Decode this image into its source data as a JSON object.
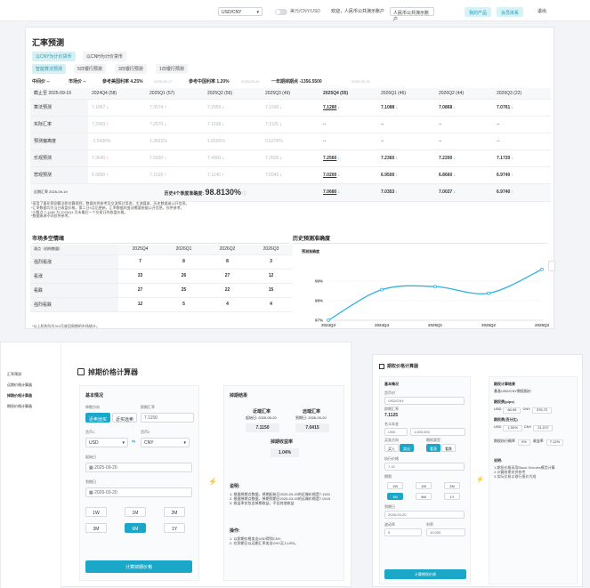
{
  "header": {
    "currency": "USD/CNY",
    "toggle": "美元/CNY/USD",
    "welcome": "欢迎，人民币公共演示账户",
    "account": "人民币公共演示账户",
    "my_products": "我的产品",
    "membership": "会员体系",
    "logout": "退出"
  },
  "forecast": {
    "title": "汇率预测",
    "tabs": [
      "以CNY为计价货币",
      "以CNH为计价货币"
    ],
    "subtabs": [
      "智能算法预测",
      "5日银行预测",
      "3日银行预测",
      "1日银行预测"
    ],
    "info": {
      "mid": "中间价 --",
      "market": "市场价 --",
      "us_rate": "参考美国利率 4.25%",
      "us_rate_date": "2025-09-17",
      "cn_rate": "参考中国利率 1.20%",
      "cn_rate_date": "2025-09-20",
      "swap": "一年期掉期点 -1356.5500",
      "swap_date": "2025-09-19"
    },
    "columns": [
      "截止至 2025-09-19",
      "2024Q4 (58)",
      "2025Q1 (57)",
      "2025Q2 (56)",
      "2025Q3 (49)",
      "2025Q4 (55)",
      "2026Q1 (46)",
      "2026Q2 (44)",
      "2026Q3 (22)"
    ],
    "rows": [
      {
        "label": "算法预测",
        "cells": [
          [
            "7.1867",
            "dn"
          ],
          [
            "7.3574",
            "up"
          ],
          [
            "7.2959",
            "dn"
          ],
          [
            "7.1500",
            "dn"
          ],
          [
            "7.1280",
            "dn"
          ],
          [
            "7.1088",
            "dn"
          ],
          [
            "7.0868",
            "dn"
          ],
          [
            "7.0761",
            "dn"
          ]
        ]
      },
      {
        "label": "实际汇率",
        "cells": [
          [
            "7.2993",
            "up"
          ],
          [
            "7.2570",
            "dn"
          ],
          [
            "7.1638",
            "dn"
          ],
          [
            "7.1125",
            "dn"
          ],
          [
            "--",
            ""
          ],
          [
            "--",
            ""
          ],
          [
            "--",
            ""
          ],
          [
            "--",
            ""
          ]
        ]
      },
      {
        "label": "预测偏离度",
        "cells": [
          [
            "-1.5436%",
            ""
          ],
          [
            "1.3831%",
            ""
          ],
          [
            "1.8165%",
            ""
          ],
          [
            "0.5276%",
            ""
          ],
          [
            "--",
            ""
          ],
          [
            "--",
            ""
          ],
          [
            "--",
            ""
          ],
          [
            "--",
            ""
          ]
        ]
      },
      {
        "label": "乐观预测",
        "cells": [
          [
            "7.3640",
            "up"
          ],
          [
            "7.5920",
            "up"
          ],
          [
            "7.4900",
            "dn"
          ],
          [
            "7.2600",
            "dn"
          ],
          [
            "7.2560",
            "dn"
          ],
          [
            "7.2360",
            "dn"
          ],
          [
            "7.2200",
            "dn"
          ],
          [
            "7.1720",
            "dn"
          ]
        ]
      },
      {
        "label": "悲观预测",
        "cells": [
          [
            "6.9800",
            "up"
          ],
          [
            "7.1520",
            "up"
          ],
          [
            "7.1140",
            "up"
          ],
          [
            "7.0040",
            "dn"
          ],
          [
            "7.0200",
            "dn"
          ],
          [
            "6.9500",
            "dn"
          ],
          [
            "6.8660",
            "dn"
          ],
          [
            "6.9740",
            "up"
          ]
        ]
      }
    ],
    "summary": {
      "label": "近期汇率 2025-09-19",
      "accuracy_label": "历史4个季度准确度:",
      "accuracy": "98.8130%",
      "cells": [
        [
          "7.0680",
          "dn"
        ],
        [
          "7.0353",
          "dn"
        ],
        [
          "7.0037",
          "dn"
        ],
        [
          "6.9740",
          "up"
        ]
      ]
    },
    "notes": [
      "*采用了量化预测算法和估算规则，数据仅供参考及交流探讨用途，主流媒体、历史数据或公开信息。",
      "*汇率数据均为当日收盘价格，第二日9点后更新，汇率数据的变动需要依据公开信息，仅供参考。",
      "*小数点 7.1280 为 2025Q4 月末最后一个交易日的收盘价格。",
      "*数据来源不同仅供参考。"
    ]
  },
  "market": {
    "title": "市场多空情绪",
    "headers": [
      "观点（机构数量）",
      "2025Q4",
      "2026Q1",
      "2026Q2",
      "2026Q3"
    ],
    "rows": [
      [
        "强烈看涨",
        "7",
        "8",
        "8",
        "3"
      ],
      [
        "看涨",
        "33",
        "26",
        "27",
        "12"
      ],
      [
        "看跌",
        "27",
        "25",
        "22",
        "15"
      ],
      [
        "强烈看跌",
        "12",
        "5",
        "4",
        "4"
      ]
    ],
    "note": "*以上机构均为311月收回周期的市场统计。"
  },
  "accuracy_chart": {
    "title": "历史预测准确度",
    "legend": "预测准确度"
  },
  "chart_data": {
    "type": "line",
    "title": "历史预测准确度",
    "categories": [
      "2024Q3",
      "2024Q4",
      "2025Q1",
      "2025Q2",
      "2025Q3"
    ],
    "series": [
      {
        "name": "预测准确度",
        "values": [
          97.0,
          98.56,
          98.72,
          98.38,
          99.6
        ]
      }
    ],
    "ylim": [
      97,
      100
    ],
    "yticks": [
      "99%",
      "98%",
      "97%"
    ]
  },
  "sidebar": {
    "items": [
      "汇率预测",
      "远期价格计算器",
      "掉期价格计算器",
      "期权价格计算器"
    ]
  },
  "swap": {
    "title": "掉期价格计算器",
    "section": "基本情况",
    "direction_label": "掉期方向",
    "direction_btns": [
      "近卖远买",
      "近买远卖"
    ],
    "spot_label": "即期汇率",
    "spot_value": "7.1150",
    "cur1_label": "货币1",
    "cur1": "USD",
    "cur2_label": "货币2",
    "cur2": "CNY",
    "start_label": "起始日",
    "start": "2025-09-20",
    "end_label": "到期日",
    "end": "2026-03-20",
    "terms": [
      "1W",
      "1M",
      "2M",
      "3M",
      "6M",
      "1Y"
    ],
    "submit": "计算掉期价格",
    "result": {
      "title": "掉期结果",
      "near_label": "近端汇率",
      "near_date": "起始日: 2025-09-20",
      "near_value": "7.1150",
      "far_label": "远端汇率",
      "far_date": "到期日: 2026-03-20",
      "far_value": "7.0415",
      "yield_label": "掉期收益率",
      "yield": "1.04%",
      "instructions": "说明:",
      "inst": [
        "1. 根据掉期点数据，掉期起始日2025-09-20的近端价格是7.1150",
        "2. 根据掉期点数据，掉期到期日2026-03-20的远端价格是7.0415",
        "3. 收益率仅包含掉期收益，不含其他收益"
      ],
      "ops": "操作:",
      "op": [
        "1. 以即期价格卖出USD得到CNY;",
        "2. 在到期日以远期汇率卖出CNY买入USD。"
      ]
    }
  },
  "option": {
    "title": "期权价格计算器",
    "section": "基本情况",
    "pair_label": "货币对",
    "pair": "USD/CNY",
    "spot_label": "即期汇率",
    "spot": "7.1125",
    "amt_label": "名义本金",
    "cur": "USD",
    "amt": "1,000,000",
    "dir_label": "买卖方向",
    "dirs": [
      "买入",
      "卖出"
    ],
    "type_label": "期权类型",
    "types": [
      "看涨",
      "看跌"
    ],
    "strike_label": "执行价格",
    "strike": "7.10",
    "term_label": "期限",
    "terms": [
      "1W",
      "1M",
      "2M",
      "3M",
      "6M",
      "1Y"
    ],
    "date_label": "到期日",
    "date": "2026-03-20",
    "vol_label": "波动率",
    "vol": "5",
    "rate_label": "利率",
    "rate": "10,000",
    "result_title": "期权计算结果",
    "result_sub": "基准USD/CNY期权报价",
    "premium_label": "期权费(pips)",
    "r1": [
      "USD",
      "60.95",
      "CNY",
      "376.72"
    ],
    "cost_label": "期权费(百分比)",
    "r2": [
      "USD",
      "1.00%",
      "CNY",
      "21,072"
    ],
    "extra": [
      "期权执行概率",
      "0%",
      "收益率",
      "7.12%"
    ],
    "notes_label": "说明:",
    "notes": [
      "1.期权价格采用Black-Scholes模型计算",
      "2.计算结果仅供参考",
      "3.实际交易以银行报价为准"
    ],
    "submit": "计算期权价格"
  }
}
